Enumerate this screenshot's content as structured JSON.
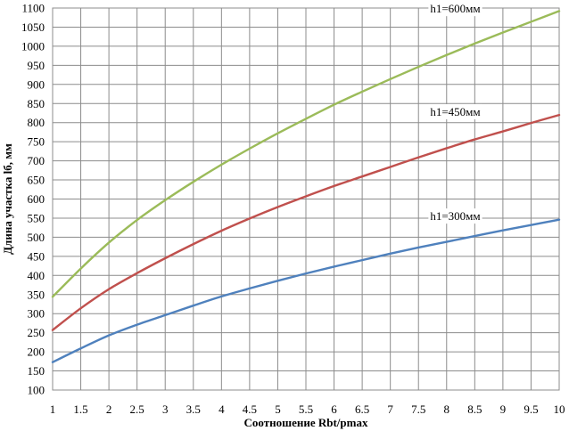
{
  "chart_data": {
    "type": "line",
    "title": "",
    "xlabel": "Соотношение Rbt/pmax",
    "ylabel": "Длина участка lб, мм",
    "xlim": [
      1,
      10
    ],
    "ylim": [
      100,
      1100
    ],
    "x_ticks": [
      "1",
      "1.5",
      "2",
      "2.5",
      "3",
      "3.5",
      "4",
      "4.5",
      "5",
      "5.5",
      "6",
      "6.5",
      "7",
      "7.5",
      "8",
      "8.5",
      "9",
      "9.5",
      "10"
    ],
    "y_ticks": [
      "100",
      "150",
      "200",
      "250",
      "300",
      "350",
      "400",
      "450",
      "500",
      "550",
      "600",
      "650",
      "700",
      "750",
      "800",
      "850",
      "900",
      "950",
      "1000",
      "1050",
      "1100"
    ],
    "grid": true,
    "x": [
      1,
      1.5,
      2,
      2.5,
      3,
      3.5,
      4,
      4.5,
      5,
      5.5,
      6,
      6.5,
      7,
      7.5,
      8,
      8.5,
      9,
      9.5,
      10
    ],
    "series": [
      {
        "name": "h1=300мм",
        "color": "#4f81bd",
        "values": [
          173,
          209,
          243,
          271,
          296,
          321,
          345,
          366,
          386,
          405,
          423,
          440,
          457,
          473,
          488,
          503,
          518,
          532,
          546
        ]
      },
      {
        "name": "h1=450мм",
        "color": "#c0504d",
        "values": [
          257,
          314,
          364,
          406,
          445,
          482,
          517,
          549,
          579,
          607,
          634,
          659,
          684,
          709,
          733,
          756,
          777,
          799,
          820
        ]
      },
      {
        "name": "h1=600мм",
        "color": "#9bbb59",
        "values": [
          344,
          418,
          486,
          545,
          597,
          645,
          690,
          732,
          772,
          810,
          847,
          881,
          914,
          946,
          977,
          1007,
          1036,
          1064,
          1092
        ]
      }
    ]
  }
}
